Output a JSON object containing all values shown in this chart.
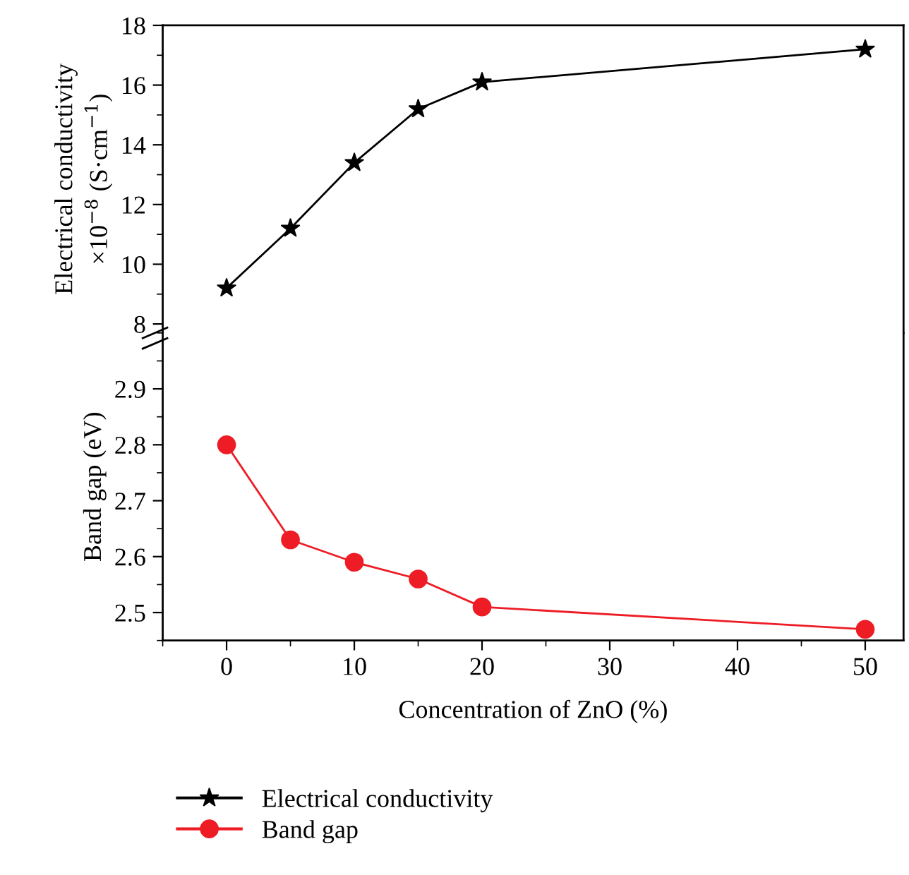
{
  "chart_data": [
    {
      "type": "line",
      "x": [
        0,
        5,
        10,
        15,
        20,
        50
      ],
      "ylabel": "Electrical conductivity\n×10$^{−8}$ (S·cm$^{−1}$)",
      "series": [
        {
          "name": "Electrical conductivity",
          "color": "#000000",
          "marker": "star",
          "values": [
            9.2,
            11.2,
            13.4,
            15.2,
            16.1,
            17.2
          ]
        }
      ],
      "xlim": [
        -5,
        53
      ],
      "xticks": [
        0,
        10,
        20,
        30,
        40,
        50
      ],
      "ylim": [
        7.7,
        18
      ],
      "yticks": [
        8,
        10,
        12,
        14,
        16,
        18
      ],
      "tick_labels": "y",
      "line_style": "solid",
      "grid": false
    },
    {
      "type": "line",
      "x": [
        0,
        5,
        10,
        15,
        20,
        50
      ],
      "ylabel": "Band gap (eV)",
      "xlabel": "Concentration of ZnO (%)",
      "series": [
        {
          "name": "Band gap",
          "color": "#ee1c25",
          "marker": "circle",
          "values": [
            2.8,
            2.63,
            2.59,
            2.56,
            2.51,
            2.47
          ]
        }
      ],
      "xlim": [
        -5,
        53
      ],
      "xticks": [
        0,
        10,
        20,
        30,
        40,
        50
      ],
      "ylim": [
        2.45,
        3.0
      ],
      "yticks": [
        2.5,
        2.6,
        2.7,
        2.8,
        2.9
      ],
      "line_style": "solid",
      "grid": false,
      "legend": "bottom"
    }
  ]
}
